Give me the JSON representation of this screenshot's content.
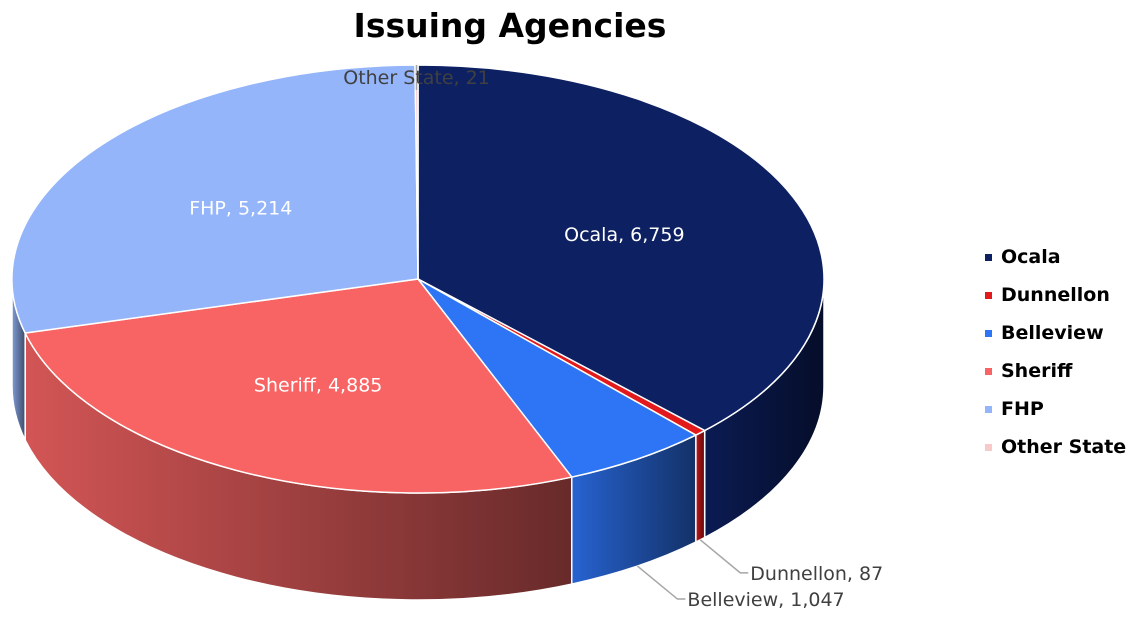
{
  "chart_data": {
    "type": "pie",
    "title": "Issuing Agencies",
    "categories": [
      "Ocala",
      "Dunnellon",
      "Belleview",
      "Sheriff",
      "FHP",
      "Other State"
    ],
    "values": [
      6759,
      87,
      1047,
      4885,
      5214,
      21
    ],
    "data_labels": [
      "Ocala, 6,759",
      "Dunnellon, 87",
      "Belleview, 1,047",
      "Sheriff, 4,885",
      "FHP, 5,214",
      "Other State, 21"
    ],
    "colors": [
      "#0d2062",
      "#e31a1c",
      "#2e75f6",
      "#f86464",
      "#94b5fa",
      "#f8c9c9"
    ],
    "legend_position": "right"
  }
}
